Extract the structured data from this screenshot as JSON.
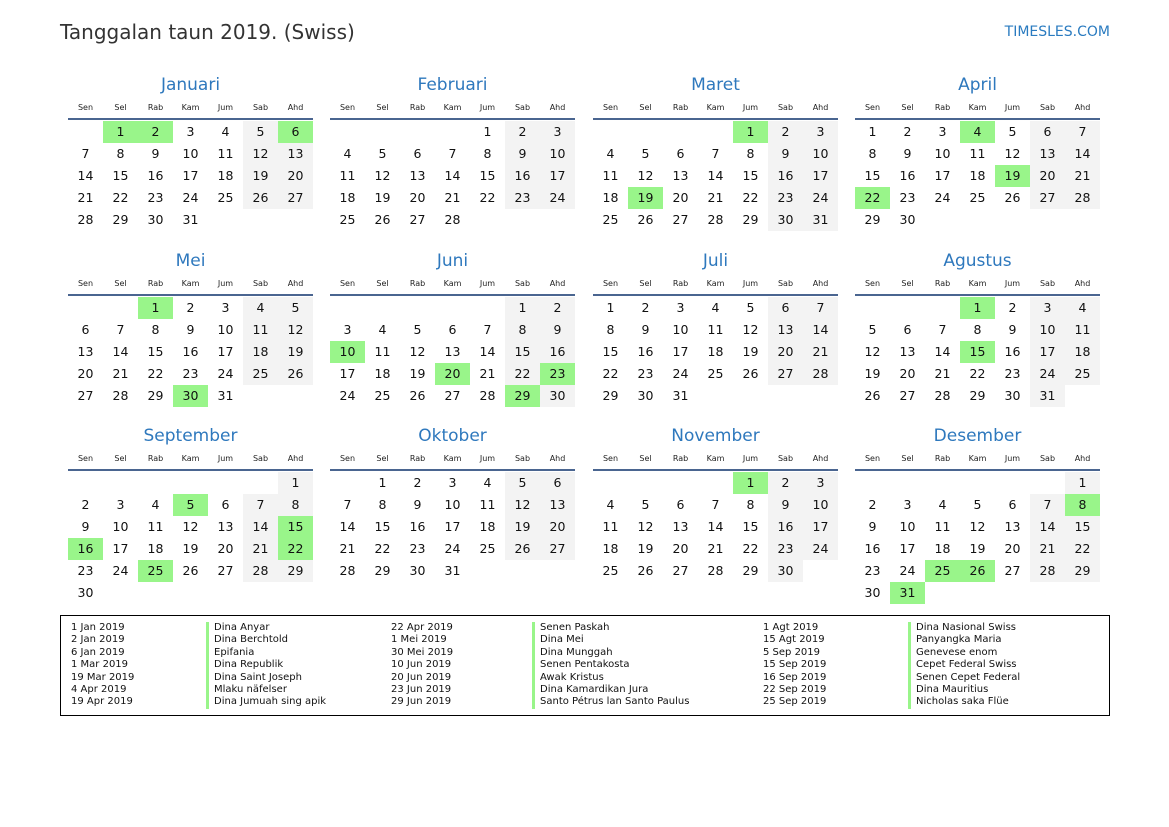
{
  "title": "Tanggalan taun 2019. (Swiss)",
  "brand": "TIMESLES.COM",
  "weekdays": [
    "Sen",
    "Sel",
    "Rab",
    "Kam",
    "Jum",
    "Sab",
    "Ahd"
  ],
  "colors": {
    "holiday": "#99f58a",
    "weekend": "#f3f3f3",
    "month_title": "#2e78bd"
  },
  "months": [
    {
      "name": "Januari",
      "first_weekday": 1,
      "days": 31,
      "holidays": [
        1,
        2,
        6
      ]
    },
    {
      "name": "Februari",
      "first_weekday": 4,
      "days": 28,
      "holidays": []
    },
    {
      "name": "Maret",
      "first_weekday": 4,
      "days": 31,
      "holidays": [
        1,
        19
      ]
    },
    {
      "name": "April",
      "first_weekday": 0,
      "days": 30,
      "holidays": [
        4,
        19,
        22
      ]
    },
    {
      "name": "Mei",
      "first_weekday": 2,
      "days": 31,
      "holidays": [
        1,
        30
      ]
    },
    {
      "name": "Juni",
      "first_weekday": 5,
      "days": 30,
      "holidays": [
        10,
        20,
        23,
        29
      ]
    },
    {
      "name": "Juli",
      "first_weekday": 0,
      "days": 31,
      "holidays": []
    },
    {
      "name": "Agustus",
      "first_weekday": 3,
      "days": 31,
      "holidays": [
        1,
        15
      ]
    },
    {
      "name": "September",
      "first_weekday": 6,
      "days": 30,
      "holidays": [
        5,
        15,
        16,
        22,
        25
      ]
    },
    {
      "name": "Oktober",
      "first_weekday": 1,
      "days": 31,
      "holidays": []
    },
    {
      "name": "November",
      "first_weekday": 4,
      "days": 30,
      "holidays": [
        1
      ]
    },
    {
      "name": "Desember",
      "first_weekday": 6,
      "days": 31,
      "holidays": [
        8,
        25,
        26,
        31
      ]
    }
  ],
  "legend": [
    {
      "date": "1 Jan 2019",
      "name": "Dina Anyar"
    },
    {
      "date": "2 Jan 2019",
      "name": "Dina Berchtold"
    },
    {
      "date": "6 Jan 2019",
      "name": "Epifania"
    },
    {
      "date": "1 Mar 2019",
      "name": "Dina Republik"
    },
    {
      "date": "19 Mar 2019",
      "name": "Dina Saint Joseph"
    },
    {
      "date": "4 Apr 2019",
      "name": "Mlaku näfelser"
    },
    {
      "date": "19 Apr 2019",
      "name": "Dina Jumuah sing apik"
    },
    {
      "date": "22 Apr 2019",
      "name": "Senen Paskah"
    },
    {
      "date": "1 Mei 2019",
      "name": "Dina Mei"
    },
    {
      "date": "30 Mei 2019",
      "name": "Dina Munggah"
    },
    {
      "date": "10 Jun 2019",
      "name": "Senen Pentakosta"
    },
    {
      "date": "20 Jun 2019",
      "name": "Awak Kristus"
    },
    {
      "date": "23 Jun 2019",
      "name": "Dina Kamardikan Jura"
    },
    {
      "date": "29 Jun 2019",
      "name": "Santo Pétrus lan Santo Paulus"
    },
    {
      "date": "1 Agt 2019",
      "name": "Dina Nasional Swiss"
    },
    {
      "date": "15 Agt 2019",
      "name": "Panyangka Maria"
    },
    {
      "date": "5 Sep 2019",
      "name": "Genevese enom"
    },
    {
      "date": "15 Sep 2019",
      "name": "Cepet Federal Swiss"
    },
    {
      "date": "16 Sep 2019",
      "name": "Senen Cepet Federal"
    },
    {
      "date": "22 Sep 2019",
      "name": "Dina Mauritius"
    },
    {
      "date": "25 Sep 2019",
      "name": "Nicholas saka Flüe"
    }
  ]
}
